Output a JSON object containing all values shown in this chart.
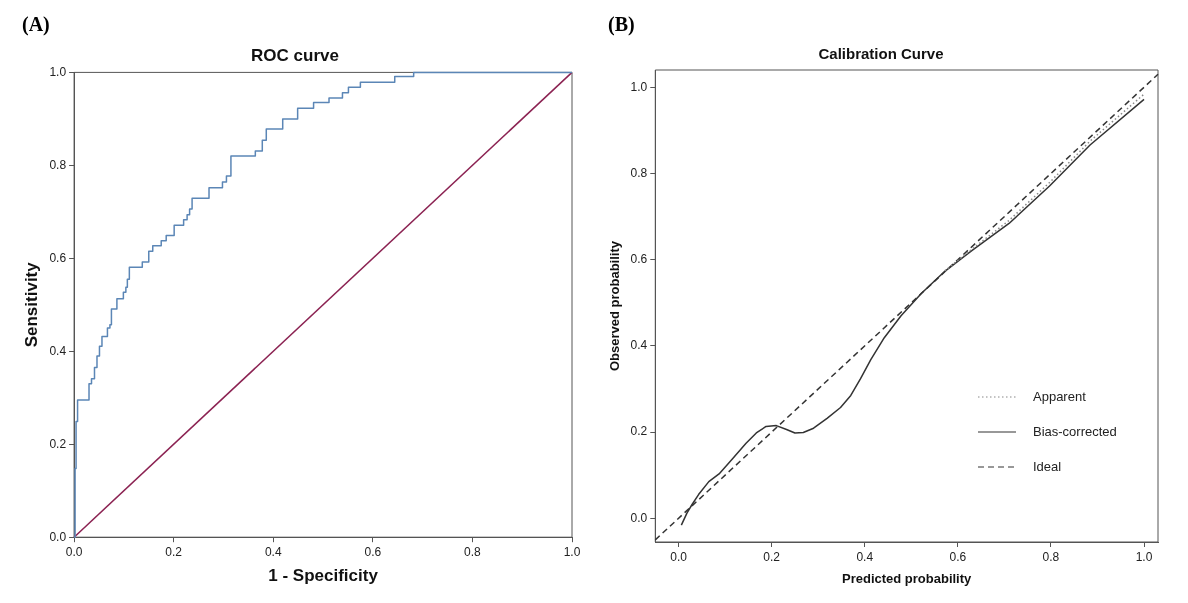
{
  "chart_data": [
    {
      "type": "step",
      "title": "ROC curve",
      "xlabel": "1 - Specificity",
      "ylabel": "Sensitivity",
      "annotations": [
        "(A)"
      ],
      "xlim": [
        0,
        1
      ],
      "ylim": [
        0,
        1
      ],
      "xticks": [
        {
          "value": 0,
          "label": "0.0"
        },
        {
          "value": 0.2,
          "label": "0.2"
        },
        {
          "value": 0.4,
          "label": "0.4"
        },
        {
          "value": 0.6,
          "label": "0.6"
        },
        {
          "value": 0.8,
          "label": "0.8"
        },
        {
          "value": 1,
          "label": "1.0"
        }
      ],
      "yticks": [
        {
          "value": 0,
          "label": "0.0"
        },
        {
          "value": 0.2,
          "label": "0.2"
        },
        {
          "value": 0.4,
          "label": "0.4"
        },
        {
          "value": 0.6,
          "label": "0.6"
        },
        {
          "value": 0.8,
          "label": "0.8"
        },
        {
          "value": 1,
          "label": "1.0"
        }
      ],
      "grid": false,
      "legend": false,
      "marker": "none",
      "series": [
        {
          "color": "#5b86b6",
          "x": [
            0,
            0.002,
            0.004,
            0.007,
            0.03,
            0.035,
            0.041,
            0.046,
            0.051,
            0.056,
            0.067,
            0.072,
            0.075,
            0.086,
            0.099,
            0.104,
            0.107,
            0.111,
            0.137,
            0.15,
            0.158,
            0.175,
            0.185,
            0.201,
            0.22,
            0.227,
            0.232,
            0.237,
            0.271,
            0.298,
            0.306,
            0.315,
            0.364,
            0.378,
            0.386,
            0.419,
            0.449,
            0.481,
            0.512,
            0.539,
            0.551,
            0.575,
            0.644,
            0.682,
            1
          ],
          "values": [
            0,
            0.148,
            0.249,
            0.295,
            0.33,
            0.341,
            0.365,
            0.39,
            0.411,
            0.432,
            0.45,
            0.457,
            0.491,
            0.513,
            0.527,
            0.538,
            0.555,
            0.581,
            0.592,
            0.615,
            0.627,
            0.638,
            0.649,
            0.671,
            0.683,
            0.694,
            0.706,
            0.729,
            0.752,
            0.764,
            0.777,
            0.82,
            0.831,
            0.854,
            0.878,
            0.9,
            0.923,
            0.935,
            0.945,
            0.956,
            0.968,
            0.979,
            0.991,
            1,
            1
          ]
        },
        {
          "type": "line",
          "color": "#8b2252",
          "x": [
            0,
            1
          ],
          "values": [
            0,
            1
          ]
        }
      ]
    },
    {
      "type": "line",
      "title": "Calibration Curve",
      "xlabel": "Predicted probability",
      "ylabel": "Observed probability",
      "annotations": [
        "(B)"
      ],
      "xlim": [
        -0.05,
        1.03
      ],
      "ylim": [
        -0.055,
        1.04
      ],
      "xticks": [
        {
          "value": 0,
          "label": "0.0"
        },
        {
          "value": 0.2,
          "label": "0.2"
        },
        {
          "value": 0.4,
          "label": "0.4"
        },
        {
          "value": 0.6,
          "label": "0.6"
        },
        {
          "value": 0.8,
          "label": "0.8"
        },
        {
          "value": 1,
          "label": "1.0"
        }
      ],
      "yticks": [
        {
          "value": 0,
          "label": "0.0"
        },
        {
          "value": 0.2,
          "label": "0.2"
        },
        {
          "value": 0.4,
          "label": "0.4"
        },
        {
          "value": 0.6,
          "label": "0.6"
        },
        {
          "value": 0.8,
          "label": "0.8"
        },
        {
          "value": 1,
          "label": "1.0"
        }
      ],
      "grid": false,
      "legend": "bottom right",
      "marker": "none",
      "series": [
        {
          "name": "Apparent",
          "color": "#888888",
          "line_style": "dotted",
          "x": [
            0.572,
            0.63,
            0.71,
            0.797,
            0.884,
            1
          ],
          "values": [
            0.574,
            0.624,
            0.691,
            0.779,
            0.875,
            0.984
          ]
        },
        {
          "name": "Bias-corrected",
          "color": "#333333",
          "line_style": "solid",
          "x": [
            0.006,
            0.018,
            0.029,
            0.043,
            0.065,
            0.087,
            0.116,
            0.145,
            0.167,
            0.188,
            0.21,
            0.232,
            0.25,
            0.268,
            0.29,
            0.319,
            0.348,
            0.37,
            0.391,
            0.413,
            0.442,
            0.478,
            0.522,
            0.572,
            0.63,
            0.71,
            0.797,
            0.884,
            1
          ],
          "values": [
            -0.016,
            0.012,
            0.032,
            0.055,
            0.085,
            0.103,
            0.138,
            0.174,
            0.198,
            0.213,
            0.215,
            0.206,
            0.198,
            0.199,
            0.209,
            0.232,
            0.257,
            0.285,
            0.324,
            0.368,
            0.419,
            0.47,
            0.522,
            0.573,
            0.621,
            0.684,
            0.771,
            0.866,
            0.972
          ]
        },
        {
          "name": "Ideal",
          "color": "#333333",
          "line_style": "dashed",
          "x": [
            -0.05,
            1.03
          ],
          "values": [
            -0.05,
            1.03
          ]
        }
      ]
    }
  ]
}
